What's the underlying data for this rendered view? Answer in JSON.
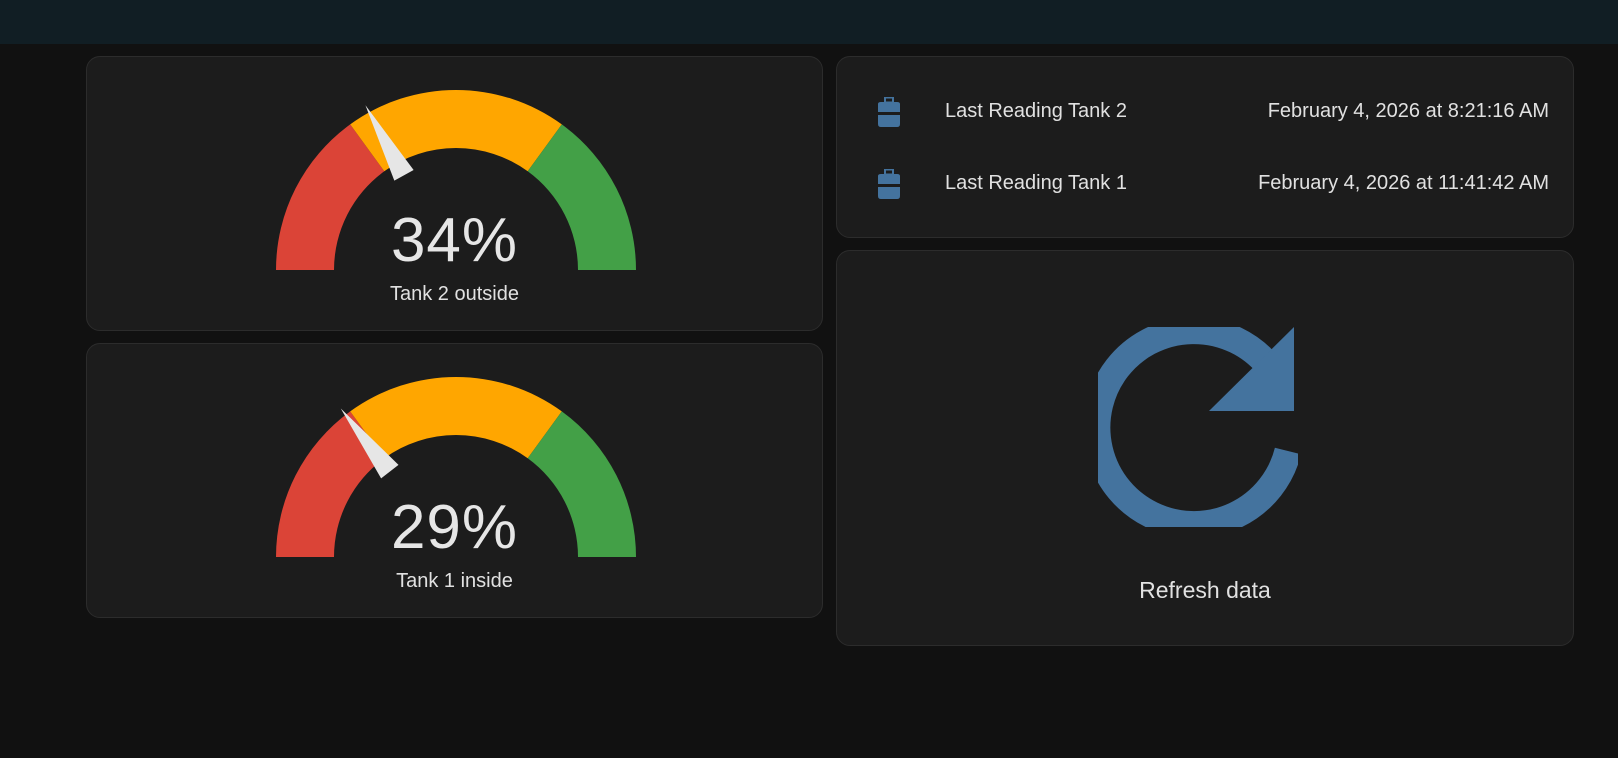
{
  "gauges": [
    {
      "name": "Tank 2 outside",
      "value_text": "34%",
      "value": 34
    },
    {
      "name": "Tank 1 inside",
      "value_text": "29%",
      "value": 29
    }
  ],
  "gauge_style": {
    "segments": [
      {
        "from": 0,
        "to": 30,
        "color": "#db4437"
      },
      {
        "from": 30,
        "to": 70,
        "color": "#ffa600"
      },
      {
        "from": 70,
        "to": 100,
        "color": "#43a047"
      }
    ],
    "needle_color": "#e6e6e6"
  },
  "entities": {
    "rows": [
      {
        "icon": "gas-cylinder-icon",
        "label": "Last Reading Tank 2",
        "value": "February 4, 2026 at 8:21:16 AM"
      },
      {
        "icon": "gas-cylinder-icon",
        "label": "Last Reading Tank 1",
        "value": "February 4, 2026 at 11:41:42 AM"
      }
    ],
    "icon_color": "#44739e"
  },
  "refresh": {
    "icon": "refresh-icon",
    "label": "Refresh data",
    "icon_color": "#44739e"
  },
  "colors": {
    "background": "#111111",
    "card": "#1c1c1c",
    "topbar": "#111e24"
  }
}
